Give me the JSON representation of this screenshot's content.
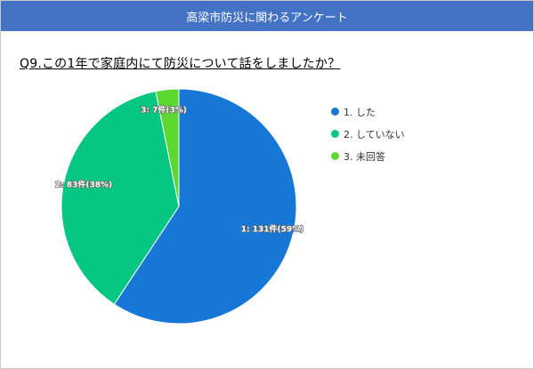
{
  "header": {
    "title": "高梁市防災に関わるアンケート"
  },
  "question": "Q9.この1年で家庭内にて防災について話をしましたか？",
  "chart_data": {
    "type": "pie",
    "categories": [
      "1. した",
      "2. していない",
      "3. 未回答"
    ],
    "values": [
      131,
      83,
      7
    ],
    "percents": [
      59,
      38,
      3
    ],
    "data_labels": [
      "1: 131件(59%)",
      "2: 83件(38%)",
      "3: 7件(3%)"
    ],
    "colors": [
      "#1777d6",
      "#05c783",
      "#5bd930"
    ],
    "start_angle_deg": 0,
    "direction": "clockwise",
    "legend_position": "right"
  }
}
